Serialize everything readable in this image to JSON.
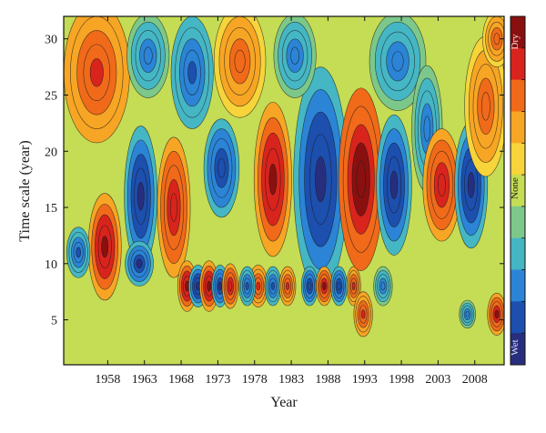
{
  "chart_data": {
    "type": "heatmap",
    "subtype": "wavelet-contour",
    "xlabel": "Year",
    "ylabel": "Time scale (year)",
    "x_ticks": [
      "1958",
      "1963",
      "1968",
      "1973",
      "1978",
      "1983",
      "1988",
      "1993",
      "1998",
      "2003",
      "2008"
    ],
    "y_ticks": [
      "5",
      "10",
      "15",
      "20",
      "25",
      "30"
    ],
    "xlim": [
      1952,
      2012
    ],
    "ylim": [
      1,
      32
    ],
    "colorbar": {
      "top_label": "Dry",
      "middle_label": "None",
      "bottom_label": "Wet",
      "colors": [
        "#8a1010",
        "#d8241c",
        "#f06a1a",
        "#f7a524",
        "#f6d43a",
        "#c5dc55",
        "#7cc88a",
        "#45b6c4",
        "#2b84d6",
        "#1c4fae",
        "#282e7e"
      ]
    },
    "grid": false,
    "features": [
      {
        "label": "Dry",
        "x": 1957.6,
        "y": 11.5,
        "rx": 1.4,
        "ry": 3.8,
        "v": 1.0
      },
      {
        "label": "Wet",
        "x": 1962.5,
        "y": 16.0,
        "rx": 1.4,
        "ry": 5.0,
        "v": -1.0
      },
      {
        "label": "Wet",
        "x": 1962.3,
        "y": 10.0,
        "rx": 1.2,
        "ry": 1.6,
        "v": -0.9
      },
      {
        "label": "Wet",
        "x": 1954.0,
        "y": 11.0,
        "rx": 1.0,
        "ry": 1.8,
        "v": -0.8
      },
      {
        "label": "Dry",
        "x": 1956.5,
        "y": 27.0,
        "rx": 2.8,
        "ry": 5.0,
        "v": 0.75
      },
      {
        "label": "Wet",
        "x": 1963.5,
        "y": 28.5,
        "rx": 1.8,
        "ry": 3.0,
        "v": -0.6
      },
      {
        "label": "Dry",
        "x": 1967.0,
        "y": 15.0,
        "rx": 1.4,
        "ry": 5.0,
        "v": 0.85
      },
      {
        "label": "Dry",
        "x": 1968.8,
        "y": 8.0,
        "rx": 0.8,
        "ry": 1.8,
        "v": 1.0
      },
      {
        "label": "Wet",
        "x": 1970.3,
        "y": 8.0,
        "rx": 0.8,
        "ry": 1.5,
        "v": -0.95
      },
      {
        "label": "Dry",
        "x": 1971.8,
        "y": 8.0,
        "rx": 0.8,
        "ry": 1.8,
        "v": 1.0
      },
      {
        "label": "Wet",
        "x": 1973.3,
        "y": 8.0,
        "rx": 0.7,
        "ry": 1.5,
        "v": -0.9
      },
      {
        "label": "Dry",
        "x": 1974.7,
        "y": 8.0,
        "rx": 0.7,
        "ry": 1.6,
        "v": 0.85
      },
      {
        "label": "Wet",
        "x": 1969.5,
        "y": 27.0,
        "rx": 1.8,
        "ry": 4.0,
        "v": -0.7
      },
      {
        "label": "Wet",
        "x": 1973.5,
        "y": 18.5,
        "rx": 1.5,
        "ry": 3.5,
        "v": -0.85
      },
      {
        "label": "Dry",
        "x": 1976.0,
        "y": 28.0,
        "rx": 2.2,
        "ry": 4.0,
        "v": 0.6
      },
      {
        "label": "Dry",
        "x": 1980.5,
        "y": 17.5,
        "rx": 1.6,
        "ry": 5.5,
        "v": 1.0
      },
      {
        "label": "Dry",
        "x": 1978.5,
        "y": 8.0,
        "rx": 0.8,
        "ry": 1.5,
        "v": 0.8
      },
      {
        "label": "Wet",
        "x": 1977.0,
        "y": 8.0,
        "rx": 0.7,
        "ry": 1.4,
        "v": -0.8
      },
      {
        "label": "Wet",
        "x": 1980.5,
        "y": 8.0,
        "rx": 0.7,
        "ry": 1.4,
        "v": -0.8
      },
      {
        "label": "Dry",
        "x": 1982.5,
        "y": 8.0,
        "rx": 0.7,
        "ry": 1.4,
        "v": 0.8
      },
      {
        "label": "Wet",
        "x": 1987.0,
        "y": 17.5,
        "rx": 2.3,
        "ry": 8.0,
        "v": -1.0
      },
      {
        "label": "Wet",
        "x": 1985.5,
        "y": 8.0,
        "rx": 0.7,
        "ry": 1.4,
        "v": -0.85
      },
      {
        "label": "Dry",
        "x": 1987.5,
        "y": 8.0,
        "rx": 0.7,
        "ry": 1.4,
        "v": 0.9
      },
      {
        "label": "Wet",
        "x": 1989.5,
        "y": 8.0,
        "rx": 0.7,
        "ry": 1.4,
        "v": -0.85
      },
      {
        "label": "Dry",
        "x": 1991.5,
        "y": 8.0,
        "rx": 0.6,
        "ry": 1.4,
        "v": 0.8
      },
      {
        "label": "Wet",
        "x": 1983.5,
        "y": 28.5,
        "rx": 1.8,
        "ry": 3.0,
        "v": -0.6
      },
      {
        "label": "Dry",
        "x": 1992.5,
        "y": 17.5,
        "rx": 1.9,
        "ry": 6.5,
        "v": 1.1
      },
      {
        "label": "Dry",
        "x": 1992.8,
        "y": 5.5,
        "rx": 0.8,
        "ry": 1.6,
        "v": 0.8
      },
      {
        "label": "Wet",
        "x": 1997.0,
        "y": 17.0,
        "rx": 1.5,
        "ry": 5.0,
        "v": -0.95
      },
      {
        "label": "Wet",
        "x": 1997.5,
        "y": 28.0,
        "rx": 2.4,
        "ry": 3.5,
        "v": -0.6
      },
      {
        "label": "Wet",
        "x": 1995.5,
        "y": 8.0,
        "rx": 0.8,
        "ry": 1.4,
        "v": -0.6
      },
      {
        "label": "Wet",
        "x": 2001.5,
        "y": 22.0,
        "rx": 1.3,
        "ry": 4.5,
        "v": -0.6
      },
      {
        "label": "Dry",
        "x": 2003.5,
        "y": 17.0,
        "rx": 1.6,
        "ry": 4.0,
        "v": 0.85
      },
      {
        "label": "Wet",
        "x": 2007.5,
        "y": 17.0,
        "rx": 1.4,
        "ry": 4.5,
        "v": -0.95
      },
      {
        "label": "Dry",
        "x": 2009.5,
        "y": 24.0,
        "rx": 1.8,
        "ry": 5.0,
        "v": 0.6
      },
      {
        "label": "Dry",
        "x": 2011.0,
        "y": 5.5,
        "rx": 0.8,
        "ry": 1.5,
        "v": 0.9
      },
      {
        "label": "Wet",
        "x": 2007.0,
        "y": 5.5,
        "rx": 0.7,
        "ry": 1.0,
        "v": -0.6
      },
      {
        "label": "Dry",
        "x": 2011.0,
        "y": 30.0,
        "rx": 1.2,
        "ry": 2.0,
        "v": 0.6
      }
    ]
  }
}
